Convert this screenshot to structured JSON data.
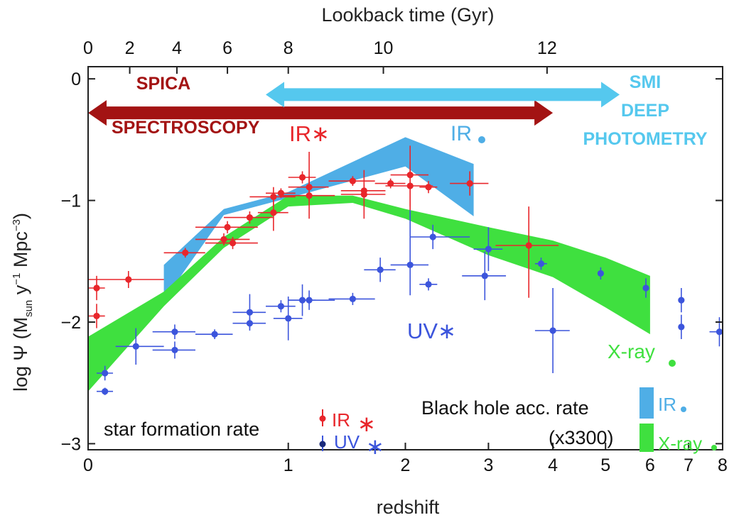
{
  "chart_data": {
    "type": "scatter",
    "title": "",
    "top_axis_label": "Lookback time (Gyr)",
    "top_ticks": [
      "0",
      "2",
      "4",
      "6",
      "8",
      "10",
      "12"
    ],
    "xlabel": "redshift",
    "x_ticks": [
      "0",
      "1",
      "2",
      "3",
      "4",
      "5",
      "6",
      "7",
      "8"
    ],
    "ylabel_main": "log Ψ (M",
    "ylabel_sub1": "sun",
    "ylabel_mid": " y",
    "ylabel_sup1": "−1",
    "ylabel_mid2": " Mpc",
    "ylabel_sup2": "−3",
    "ylabel_end": ")",
    "y_ticks": [
      "0",
      "−1",
      "−2",
      "−3"
    ],
    "ylim": [
      -3.05,
      0.1
    ],
    "grid": false,
    "series": [
      {
        "name": "IR star formation rate",
        "color": "#e8262b",
        "points": [
          {
            "z": 0.03,
            "y": -1.72,
            "xlo": 0.0,
            "xhi": 0.06,
            "ylo": -1.82,
            "yhi": -1.62
          },
          {
            "z": 0.03,
            "y": -1.95,
            "xlo": 0.0,
            "xhi": 0.06,
            "ylo": -2.05,
            "yhi": -1.85
          },
          {
            "z": 0.15,
            "y": -1.65,
            "xlo": 0.0,
            "xhi": 0.3,
            "ylo": -1.72,
            "yhi": -1.58
          },
          {
            "z": 0.4,
            "y": -1.43,
            "xlo": 0.3,
            "xhi": 0.5,
            "ylo": -1.47,
            "yhi": -1.39
          },
          {
            "z": 0.6,
            "y": -1.32,
            "xlo": 0.45,
            "xhi": 0.75,
            "ylo": -1.37,
            "yhi": -1.27
          },
          {
            "z": 0.62,
            "y": -1.22,
            "xlo": 0.45,
            "xhi": 0.8,
            "ylo": -1.27,
            "yhi": -1.17
          },
          {
            "z": 0.65,
            "y": -1.35,
            "xlo": 0.5,
            "xhi": 0.8,
            "ylo": -1.4,
            "yhi": -1.3
          },
          {
            "z": 0.75,
            "y": -1.14,
            "xlo": 0.6,
            "xhi": 0.9,
            "ylo": -1.19,
            "yhi": -1.09
          },
          {
            "z": 0.9,
            "y": -1.1,
            "xlo": 0.8,
            "xhi": 1.0,
            "ylo": -1.25,
            "yhi": -0.95
          },
          {
            "z": 0.9,
            "y": -0.97,
            "xlo": 0.75,
            "xhi": 1.05,
            "ylo": -1.05,
            "yhi": -0.89
          },
          {
            "z": 0.95,
            "y": -0.94,
            "xlo": 0.85,
            "xhi": 1.05,
            "ylo": -0.98,
            "yhi": -0.9
          },
          {
            "z": 1.1,
            "y": -0.81,
            "xlo": 1.0,
            "xhi": 1.2,
            "ylo": -0.86,
            "yhi": -0.76
          },
          {
            "z": 1.15,
            "y": -0.89,
            "xlo": 1.0,
            "xhi": 1.3,
            "ylo": -1.0,
            "yhi": -0.6
          },
          {
            "z": 1.15,
            "y": -0.96,
            "xlo": 0.95,
            "xhi": 1.35,
            "ylo": -1.15,
            "yhi": -0.8
          },
          {
            "z": 1.5,
            "y": -0.84,
            "xlo": 1.3,
            "xhi": 1.7,
            "ylo": -0.88,
            "yhi": -0.8
          },
          {
            "z": 1.6,
            "y": -0.92,
            "xlo": 1.4,
            "xhi": 1.8,
            "ylo": -0.97,
            "yhi": -0.87
          },
          {
            "z": 1.6,
            "y": -0.95,
            "xlo": 1.4,
            "xhi": 1.8,
            "ylo": -1.15,
            "yhi": -0.75
          },
          {
            "z": 1.85,
            "y": -0.86,
            "xlo": 1.7,
            "xhi": 2.0,
            "ylo": -0.9,
            "yhi": -0.82
          },
          {
            "z": 2.05,
            "y": -0.79,
            "xlo": 1.85,
            "xhi": 2.25,
            "ylo": -1.05,
            "yhi": -0.55
          },
          {
            "z": 2.05,
            "y": -0.88,
            "xlo": 1.8,
            "xhi": 2.3,
            "ylo": -1.08,
            "yhi": -0.68
          },
          {
            "z": 2.25,
            "y": -0.89,
            "xlo": 2.15,
            "xhi": 2.35,
            "ylo": -0.94,
            "yhi": -0.84
          },
          {
            "z": 2.75,
            "y": -0.86,
            "xlo": 2.5,
            "xhi": 3.0,
            "ylo": -0.96,
            "yhi": -0.76
          },
          {
            "z": 3.6,
            "y": -1.37,
            "xlo": 3.1,
            "xhi": 4.1,
            "ylo": -1.8,
            "yhi": -1.05
          }
        ]
      },
      {
        "name": "UV star formation rate",
        "color": "#3c55dc",
        "points": [
          {
            "z": 0.06,
            "y": -2.42,
            "xlo": 0.03,
            "xhi": 0.09,
            "ylo": -2.48,
            "yhi": -2.36
          },
          {
            "z": 0.06,
            "y": -2.57,
            "xlo": 0.03,
            "xhi": 0.09,
            "ylo": -2.6,
            "yhi": -2.54
          },
          {
            "z": 0.18,
            "y": -2.2,
            "xlo": 0.1,
            "xhi": 0.3,
            "ylo": -2.35,
            "yhi": -2.05
          },
          {
            "z": 0.35,
            "y": -2.08,
            "xlo": 0.25,
            "xhi": 0.45,
            "ylo": -2.14,
            "yhi": -2.02
          },
          {
            "z": 0.35,
            "y": -2.23,
            "xlo": 0.25,
            "xhi": 0.45,
            "ylo": -2.3,
            "yhi": -2.16
          },
          {
            "z": 0.55,
            "y": -2.1,
            "xlo": 0.45,
            "xhi": 0.65,
            "ylo": -2.14,
            "yhi": -2.06
          },
          {
            "z": 0.75,
            "y": -2.01,
            "xlo": 0.65,
            "xhi": 0.85,
            "ylo": -2.05,
            "yhi": -1.97
          },
          {
            "z": 0.75,
            "y": -1.92,
            "xlo": 0.65,
            "xhi": 0.85,
            "ylo": -2.07,
            "yhi": -1.77
          },
          {
            "z": 0.95,
            "y": -1.87,
            "xlo": 0.85,
            "xhi": 1.05,
            "ylo": -1.92,
            "yhi": -1.82
          },
          {
            "z": 1.0,
            "y": -1.97,
            "xlo": 0.9,
            "xhi": 1.1,
            "ylo": -2.15,
            "yhi": -1.79
          },
          {
            "z": 1.1,
            "y": -1.82,
            "xlo": 1.0,
            "xhi": 1.2,
            "ylo": -1.95,
            "yhi": -1.69
          },
          {
            "z": 1.15,
            "y": -1.82,
            "xlo": 1.0,
            "xhi": 1.35,
            "ylo": -1.9,
            "yhi": -1.74
          },
          {
            "z": 1.5,
            "y": -1.81,
            "xlo": 1.3,
            "xhi": 1.7,
            "ylo": -1.86,
            "yhi": -1.76
          },
          {
            "z": 1.75,
            "y": -1.57,
            "xlo": 1.6,
            "xhi": 1.9,
            "ylo": -1.67,
            "yhi": -1.47
          },
          {
            "z": 2.05,
            "y": -1.53,
            "xlo": 1.85,
            "xhi": 2.25,
            "ylo": -1.78,
            "yhi": -1.08
          },
          {
            "z": 2.25,
            "y": -1.69,
            "xlo": 2.15,
            "xhi": 2.35,
            "ylo": -1.74,
            "yhi": -1.64
          },
          {
            "z": 2.3,
            "y": -1.3,
            "xlo": 2.05,
            "xhi": 2.75,
            "ylo": -1.4,
            "yhi": -1.2
          },
          {
            "z": 2.95,
            "y": -1.62,
            "xlo": 2.65,
            "xhi": 3.25,
            "ylo": -1.82,
            "yhi": -1.42
          },
          {
            "z": 3.0,
            "y": -1.4,
            "xlo": 2.8,
            "xhi": 3.2,
            "ylo": -1.58,
            "yhi": -1.22
          },
          {
            "z": 3.8,
            "y": -1.52,
            "xlo": 3.7,
            "xhi": 3.9,
            "ylo": -1.57,
            "yhi": -1.47
          },
          {
            "z": 4.0,
            "y": -2.07,
            "xlo": 3.7,
            "xhi": 4.3,
            "ylo": -2.42,
            "yhi": -1.72
          },
          {
            "z": 4.9,
            "y": -1.6,
            "xlo": 4.85,
            "xhi": 4.95,
            "ylo": -1.65,
            "yhi": -1.55
          },
          {
            "z": 5.9,
            "y": -1.72,
            "xlo": 5.85,
            "xhi": 5.95,
            "ylo": -1.8,
            "yhi": -1.64
          },
          {
            "z": 6.8,
            "y": -1.82,
            "xlo": 6.75,
            "xhi": 6.85,
            "ylo": -1.92,
            "yhi": -1.72
          },
          {
            "z": 6.8,
            "y": -2.04,
            "xlo": 6.75,
            "xhi": 6.85,
            "ylo": -2.14,
            "yhi": -1.94
          },
          {
            "z": 7.9,
            "y": -2.08,
            "xlo": 7.6,
            "xhi": 8.0,
            "ylo": -2.2,
            "yhi": -1.96
          }
        ]
      }
    ],
    "bands": [
      {
        "name": "Black hole acc. rate IR (x3300)",
        "color": "#4faee6",
        "upper": [
          [
            0.3,
            -1.53
          ],
          [
            0.6,
            -1.07
          ],
          [
            1.0,
            -0.93
          ],
          [
            2.0,
            -0.48
          ],
          [
            2.8,
            -0.7
          ]
        ],
        "lower": [
          [
            2.8,
            -1.13
          ],
          [
            2.0,
            -0.72
          ],
          [
            1.0,
            -0.98
          ],
          [
            0.6,
            -1.12
          ],
          [
            0.3,
            -1.82
          ]
        ]
      },
      {
        "name": "Black hole acc. rate X-ray (x3300)",
        "color": "#3fe03f",
        "upper": [
          [
            0.0,
            -2.12
          ],
          [
            0.3,
            -1.75
          ],
          [
            0.6,
            -1.3
          ],
          [
            1.0,
            -0.96
          ],
          [
            1.5,
            -0.96
          ],
          [
            2.0,
            -1.07
          ],
          [
            3.0,
            -1.22
          ],
          [
            4.0,
            -1.33
          ],
          [
            5.0,
            -1.47
          ],
          [
            6.0,
            -1.62
          ]
        ],
        "lower": [
          [
            6.0,
            -2.1
          ],
          [
            5.0,
            -1.88
          ],
          [
            4.0,
            -1.63
          ],
          [
            3.0,
            -1.45
          ],
          [
            2.0,
            -1.15
          ],
          [
            1.5,
            -1.02
          ],
          [
            1.0,
            -1.05
          ],
          [
            0.6,
            -1.39
          ],
          [
            0.3,
            -1.87
          ],
          [
            0.0,
            -2.57
          ]
        ]
      }
    ],
    "arrows": [
      {
        "name": "SPICA spectroscopy range",
        "color": "#a31313",
        "z_start": 0.0,
        "z_end": 4.0,
        "y": -0.28
      },
      {
        "name": "SMI deep photometry range",
        "color": "#55c8ee",
        "z_start": 0.85,
        "z_end": 5.3,
        "y": -0.13
      }
    ],
    "annotations": {
      "spica_title": "SPICA",
      "spica_sub": "SPECTROSCOPY",
      "smi_line1": "SMI",
      "smi_line2": "DEEP",
      "smi_line3": "PHOTOMETRY",
      "ir_star": "IR∗",
      "ir_dot": "IR",
      "uv_star": "UV∗",
      "xray_dot": "X-ray"
    },
    "legend": {
      "sfr_label": "star formation rate",
      "sfr_ir": "IR",
      "sfr_uv": "UV",
      "bh_label": "Black hole acc. rate",
      "bh_factor": "(x3300)",
      "bh_ir": "IR",
      "bh_xray": "X-ray",
      "star_glyph": "∗"
    },
    "colors": {
      "ir_sfr": "#e8262b",
      "uv_sfr": "#3c55dc",
      "ir_bh": "#4faee6",
      "xray_bh": "#3fe03f",
      "spica": "#a31313",
      "smi": "#55c8ee"
    }
  }
}
